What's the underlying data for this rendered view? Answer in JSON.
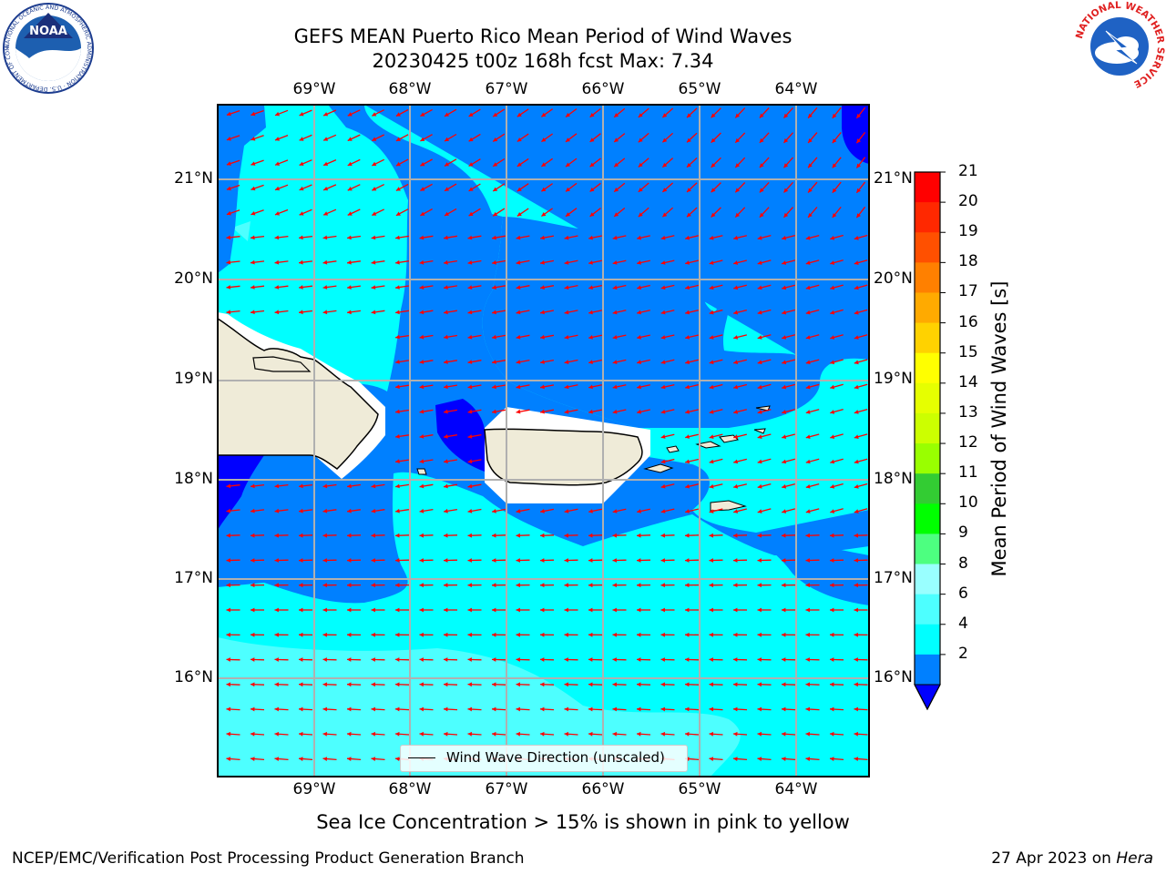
{
  "header": {
    "title_line1": "GEFS MEAN Puerto Rico Mean Period of Wind Waves",
    "title_line2": "20230425 t00z 168h fcst   Max: 7.34"
  },
  "logos": {
    "left": "NOAA",
    "left_ring": "NATIONAL OCEANIC AND ATMOSPHERIC ADMINISTRATION · U.S. DEPARTMENT OF COMMERCE",
    "right_ring": "NATIONAL WEATHER SERVICE"
  },
  "map": {
    "lon_labels": [
      "69°W",
      "68°W",
      "67°W",
      "66°W",
      "65°W",
      "64°W"
    ],
    "lat_labels": [
      "21°N",
      "20°N",
      "19°N",
      "18°N",
      "17°N",
      "16°N"
    ],
    "legend_label": "Wind Wave Direction (unscaled)",
    "arrow_color": "#ff0000",
    "land_color": "#efebd8",
    "ocean_colors": {
      "2-4": "#0080ff",
      "4-6": "#00ffff",
      "6-8": "#4dffff",
      "below_2": "#0000ff"
    }
  },
  "colorbar": {
    "label": "Mean Period of Wind Waves [s]",
    "ticks": [
      "21",
      "20",
      "19",
      "18",
      "17",
      "16",
      "15",
      "14",
      "13",
      "12",
      "11",
      "10",
      "9",
      "8",
      "6",
      "4",
      "2"
    ],
    "colors": [
      "#ff0000",
      "#ff2800",
      "#ff5000",
      "#ff8000",
      "#ffaa00",
      "#ffd200",
      "#ffff00",
      "#e6ff00",
      "#ccff00",
      "#99ff00",
      "#33cc33",
      "#00ff00",
      "#4dff80",
      "#99ffff",
      "#4dffff",
      "#00ffff",
      "#0080ff"
    ],
    "under_color": "#0000ff"
  },
  "footer": {
    "note": "Sea Ice Concentration > 15% is shown in pink to yellow",
    "credit": "NCEP/EMC/Verification Post Processing Product Generation Branch",
    "date": "27 Apr 2023 on ",
    "machine": "Hera"
  }
}
